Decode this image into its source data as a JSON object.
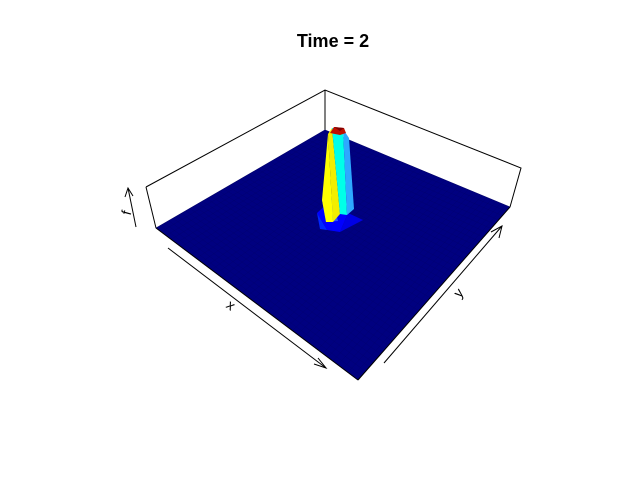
{
  "chart_data": {
    "type": "surface",
    "title": "Time =  2",
    "xlabel": "x",
    "ylabel": "y",
    "zlabel": "f",
    "grid": false,
    "legend": "none",
    "box": true,
    "surface": {
      "shape": "single central peak on flat base",
      "base_value": 0,
      "peak_value": 1,
      "colormap": [
        "#00007F",
        "#0000FF",
        "#00FFFF",
        "#FFFF00",
        "#FF0000",
        "#7F0000"
      ]
    }
  }
}
